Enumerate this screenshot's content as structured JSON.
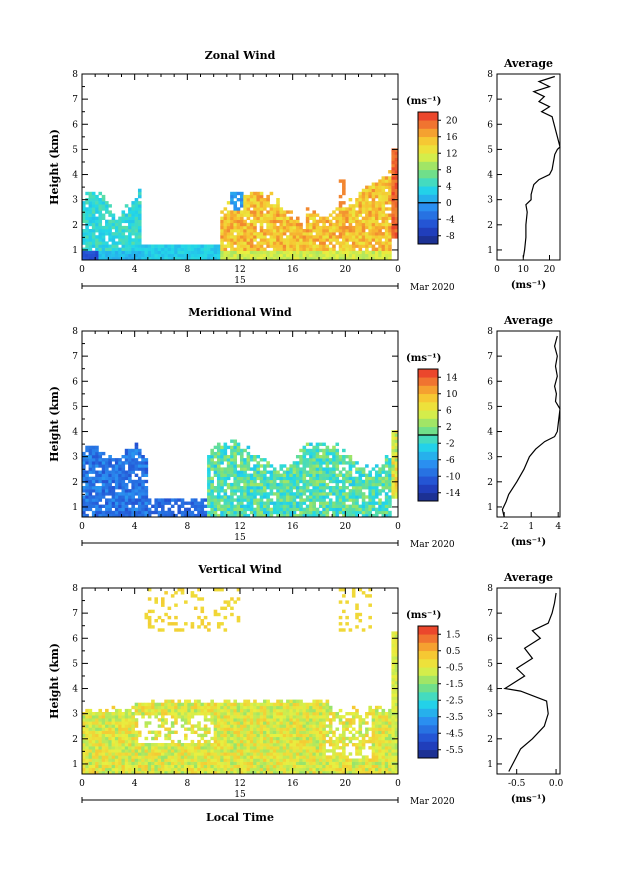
{
  "figure": {
    "x_axis_label": "Local Time",
    "date_day": "15",
    "date_month_year": "Mar 2020"
  },
  "chart_data": [
    {
      "type": "heatmap",
      "title": "Zonal Wind",
      "ylabel": "Height (km)",
      "x_ticks": [
        "0",
        "4",
        "8",
        "12",
        "16",
        "20",
        "0"
      ],
      "y_ticks": [
        "1",
        "2",
        "3",
        "4",
        "5",
        "6",
        "7",
        "8"
      ],
      "ylim": [
        0.6,
        8.0
      ],
      "colorbar": {
        "unit": "(ms⁻¹)",
        "ticks": [
          "20",
          "16",
          "12",
          "8",
          "4",
          "0",
          "-4",
          "-8"
        ],
        "range": [
          -10,
          22
        ],
        "zero_line": 0
      },
      "average_profile": {
        "title": "Average",
        "x_ticks": [
          "0",
          "10",
          "20"
        ],
        "xlim": [
          0,
          24
        ],
        "unit": "(ms⁻¹)",
        "height_km": [
          0.7,
          1.0,
          1.5,
          2.0,
          2.5,
          2.8,
          3.0,
          3.2,
          3.4,
          3.6,
          3.8,
          4.0,
          4.2,
          4.5,
          4.8,
          5.0,
          5.1,
          6.3,
          6.5,
          6.7,
          6.9,
          7.1,
          7.3,
          7.5,
          7.7,
          7.9
        ],
        "values": [
          10,
          10.5,
          11,
          11,
          11.5,
          11,
          13,
          13,
          13.5,
          14,
          16,
          20,
          21,
          21.5,
          22,
          23,
          24,
          21,
          17,
          20,
          16,
          18,
          14,
          20,
          16,
          22
        ]
      }
    },
    {
      "type": "heatmap",
      "title": "Meridional Wind",
      "ylabel": "Height (km)",
      "x_ticks": [
        "0",
        "4",
        "8",
        "12",
        "16",
        "20",
        "0"
      ],
      "y_ticks": [
        "1",
        "2",
        "3",
        "4",
        "5",
        "6",
        "7",
        "8"
      ],
      "ylim": [
        0.6,
        8.0
      ],
      "colorbar": {
        "unit": "(ms⁻¹)",
        "ticks": [
          "14",
          "10",
          "6",
          "2",
          "-2",
          "-6",
          "-10",
          "-14"
        ],
        "range": [
          -16,
          16
        ],
        "zero_line": 0
      },
      "average_profile": {
        "title": "Average",
        "x_ticks": [
          "-2",
          "1",
          "4"
        ],
        "xlim": [
          -2.8,
          4.2
        ],
        "unit": "(ms⁻¹)",
        "height_km": [
          0.6,
          0.9,
          1.2,
          1.5,
          2.0,
          2.5,
          3.0,
          3.3,
          3.6,
          3.8,
          4.0,
          4.3,
          4.6,
          4.9,
          5.2,
          5.5,
          5.8,
          6.2,
          6.6,
          7.0,
          7.4,
          7.8
        ],
        "values": [
          -2,
          -2.2,
          -1.8,
          -1.5,
          -0.6,
          0.2,
          0.8,
          1.5,
          2.5,
          3.6,
          3.9,
          4.0,
          4.1,
          4.2,
          3.7,
          3.8,
          3.6,
          3.9,
          3.7,
          3.9,
          3.6,
          3.9
        ]
      }
    },
    {
      "type": "heatmap",
      "title": "Vertical Wind",
      "ylabel": "Height (km)",
      "x_ticks": [
        "0",
        "4",
        "8",
        "12",
        "16",
        "20",
        "0"
      ],
      "y_ticks": [
        "1",
        "2",
        "3",
        "4",
        "5",
        "6",
        "7",
        "8"
      ],
      "ylim": [
        0.6,
        8.0
      ],
      "colorbar": {
        "unit": "(ms⁻¹)",
        "ticks": [
          "1.5",
          "0.5",
          "-0.5",
          "-1.5",
          "-2.5",
          "-3.5",
          "-4.5",
          "-5.5"
        ],
        "range": [
          -6.0,
          2.0
        ],
        "zero_line": null
      },
      "average_profile": {
        "title": "Average",
        "x_ticks": [
          "-0.5",
          "0.0"
        ],
        "xlim": [
          -0.75,
          0.05
        ],
        "unit": "(ms⁻¹)",
        "height_km": [
          0.7,
          1.0,
          1.3,
          1.6,
          2.0,
          2.5,
          3.0,
          3.5,
          3.9,
          4.0,
          4.2,
          4.5,
          4.8,
          5.2,
          5.6,
          6.0,
          6.3,
          6.6,
          7.0,
          7.4,
          7.8
        ],
        "values": [
          -0.6,
          -0.55,
          -0.5,
          -0.45,
          -0.3,
          -0.15,
          -0.1,
          -0.12,
          -0.45,
          -0.65,
          -0.55,
          -0.4,
          -0.5,
          -0.3,
          -0.4,
          -0.2,
          -0.3,
          -0.1,
          -0.05,
          -0.02,
          0.0
        ]
      }
    }
  ]
}
